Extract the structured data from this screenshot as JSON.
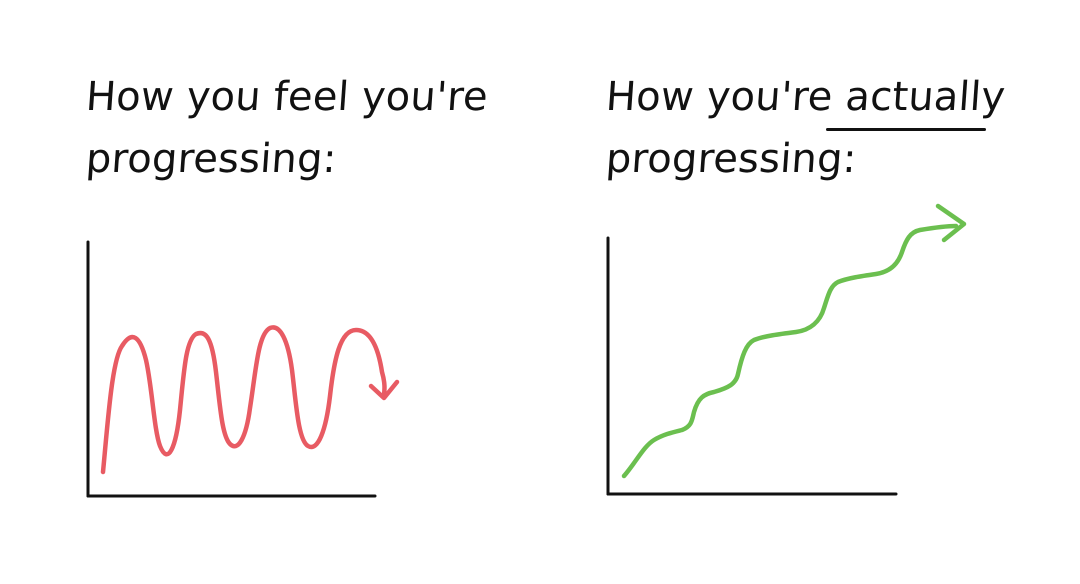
{
  "panels": [
    {
      "title_line_1": "How you feel you're",
      "title_line_2": "progressing:",
      "colors": {
        "text": "#111111",
        "curve": "#e85b63"
      }
    },
    {
      "title_line_1": "How you're actually",
      "title_line_2": "progressing:",
      "emphasized_word": "actually",
      "colors": {
        "text": "#111111",
        "curve": "#6bbf4f"
      }
    }
  ]
}
